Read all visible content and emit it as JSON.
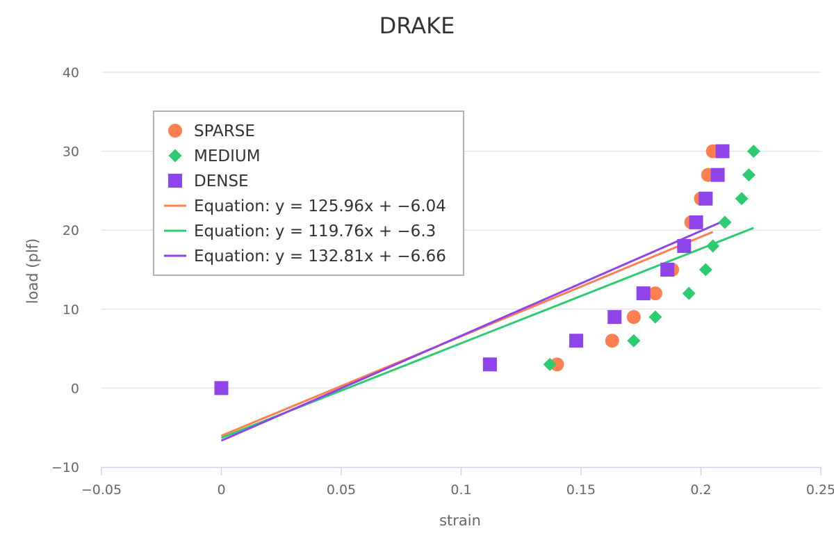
{
  "chart_data": {
    "type": "scatter",
    "title": "DRAKE",
    "xlabel": "strain",
    "ylabel": "load (plf)",
    "xlim": [
      -0.05,
      0.25
    ],
    "ylim": [
      -10,
      40
    ],
    "x_ticks": [
      "−0.05",
      "0",
      "0.05",
      "0.1",
      "0.15",
      "0.2",
      "0.25"
    ],
    "x_tick_values": [
      -0.05,
      0,
      0.05,
      0.1,
      0.15,
      0.2,
      0.25
    ],
    "y_ticks": [
      "−10",
      "0",
      "10",
      "20",
      "30",
      "40"
    ],
    "y_tick_values": [
      -10,
      0,
      10,
      20,
      30,
      40
    ],
    "grid": true,
    "legend_position": "top-left",
    "series": [
      {
        "name": "SPARSE",
        "marker": "circle",
        "color": "#ff7f50",
        "points": [
          [
            0.0,
            0
          ],
          [
            0.14,
            3
          ],
          [
            0.163,
            6
          ],
          [
            0.172,
            9
          ],
          [
            0.181,
            12
          ],
          [
            0.188,
            15
          ],
          [
            0.193,
            18
          ],
          [
            0.196,
            21
          ],
          [
            0.2,
            24
          ],
          [
            0.203,
            27
          ],
          [
            0.205,
            30
          ]
        ]
      },
      {
        "name": "MEDIUM",
        "marker": "diamond",
        "color": "#2ecc71",
        "points": [
          [
            0.0,
            0
          ],
          [
            0.137,
            3
          ],
          [
            0.172,
            6
          ],
          [
            0.181,
            9
          ],
          [
            0.195,
            12
          ],
          [
            0.202,
            15
          ],
          [
            0.205,
            18
          ],
          [
            0.21,
            21
          ],
          [
            0.217,
            24
          ],
          [
            0.22,
            27
          ],
          [
            0.222,
            30
          ]
        ]
      },
      {
        "name": "DENSE",
        "marker": "square",
        "color": "#8e44e8",
        "points": [
          [
            0.0,
            0
          ],
          [
            0.112,
            3
          ],
          [
            0.148,
            6
          ],
          [
            0.164,
            9
          ],
          [
            0.176,
            12
          ],
          [
            0.186,
            15
          ],
          [
            0.193,
            18
          ],
          [
            0.198,
            21
          ],
          [
            0.202,
            24
          ],
          [
            0.207,
            27
          ],
          [
            0.209,
            30
          ]
        ]
      }
    ],
    "trendlines": [
      {
        "name": "Equation: y = 125.96x + −6.04",
        "color": "#ff7f50",
        "slope": 125.96,
        "intercept": -6.04,
        "x_range": [
          0.0,
          0.205
        ]
      },
      {
        "name": "Equation: y = 119.76x + −6.3",
        "color": "#2ecc71",
        "slope": 119.76,
        "intercept": -6.3,
        "x_range": [
          0.0,
          0.222
        ]
      },
      {
        "name": "Equation: y = 132.81x + −6.66",
        "color": "#8e44e8",
        "slope": 132.81,
        "intercept": -6.66,
        "x_range": [
          0.0,
          0.209
        ]
      }
    ]
  }
}
